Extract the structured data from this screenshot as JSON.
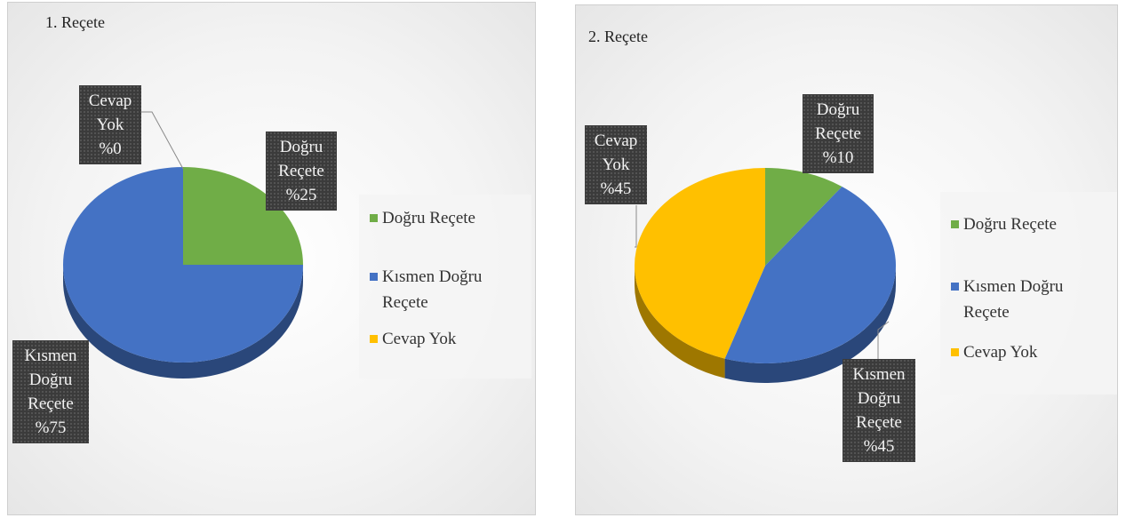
{
  "chart_data": [
    {
      "type": "pie",
      "title": "1. Reçete",
      "categories": [
        "Doğru Reçete",
        "Kısmen Doğru Reçete",
        "Cevap Yok"
      ],
      "values": [
        25,
        75,
        0
      ],
      "value_labels": [
        "%25",
        "%75",
        "%0"
      ],
      "colors": [
        "#70ad47",
        "#4472c4",
        "#ffc000"
      ],
      "legend": "right"
    },
    {
      "type": "pie",
      "title": "2. Reçete",
      "categories": [
        "Doğru Reçete",
        "Kısmen Doğru Reçete",
        "Cevap Yok"
      ],
      "values": [
        10,
        45,
        45
      ],
      "value_labels": [
        "%10",
        "%45",
        "%45"
      ],
      "colors": [
        "#70ad47",
        "#4472c4",
        "#ffc000"
      ],
      "legend": "right"
    }
  ]
}
